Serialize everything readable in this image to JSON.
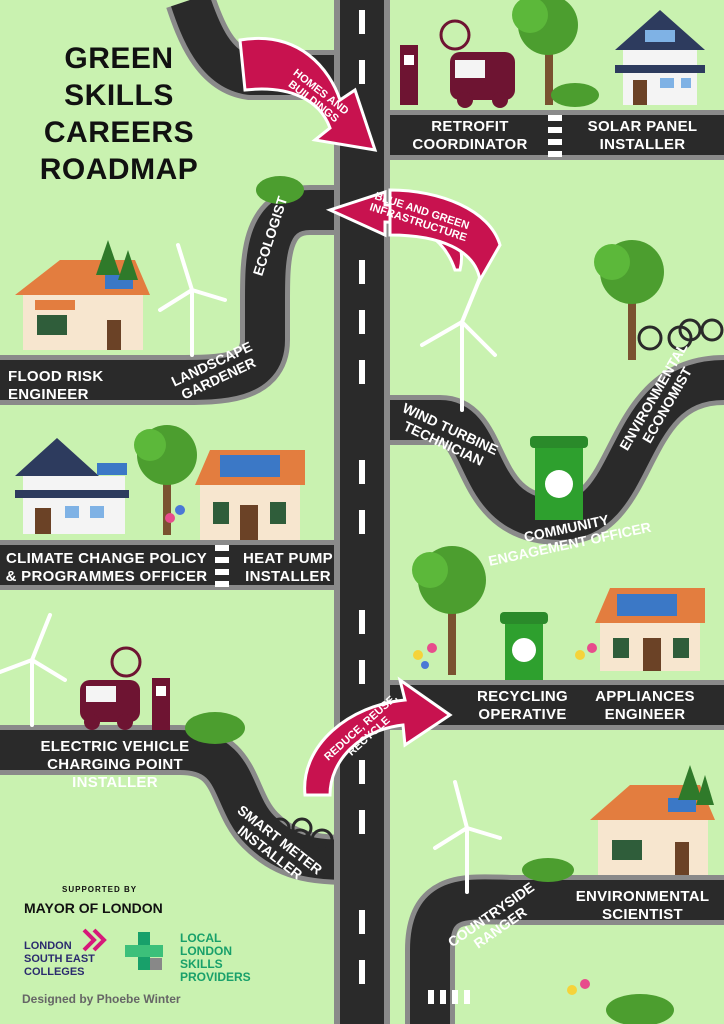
{
  "title": [
    "GREEN",
    "SKILLS",
    "CAREERS",
    "ROADMAP"
  ],
  "arrows": {
    "homes": "HOMES AND BUILDINGS",
    "blue_green": "BLUE AND GREEN INFRASTRUCTURE",
    "reduce": "REDUCE, REUSE, RECYCLE"
  },
  "careers": {
    "retrofit": "RETROFIT COORDINATOR",
    "solar": "SOLAR PANEL INSTALLER",
    "ecologist": "ECOLOGIST",
    "flood": "FLOOD RISK ENGINEER",
    "landscape": "LANDSCAPE GARDENER",
    "wind": "WIND TURBINE TECHNICIAN",
    "economist": "ENVIRONMENTAL ECONOMIST",
    "community": "COMMUNITY ENGAGEMENT OFFICER",
    "policy": "CLIMATE CHANGE POLICY & PROGRAMMES OFFICER",
    "heatpump": "HEAT PUMP INSTALLER",
    "recycling": "RECYCLING OPERATIVE",
    "appliances": "APPLIANCES ENGINEER",
    "ev": "ELECTRIC VEHICLE CHARGING POINT INSTALLER",
    "smartmeter": "SMART METER INSTALLER",
    "countryside": "COUNTRYSIDE RANGER",
    "scientist": "ENVIRONMENTAL SCIENTIST"
  },
  "footer": {
    "supported_by": "SUPPORTED BY",
    "mayor": "MAYOR OF LONDON",
    "lsec": "LONDON SOUTH EAST COLLEGES",
    "llsp": "LOCAL LONDON SKILLS PROVIDERS",
    "credit": "Designed by Phoebe Winter"
  },
  "colors": {
    "background": "#c9f2b0",
    "road": "#2a2a2a",
    "road_edge": "#8a8a8a",
    "arrow": "#c8124f"
  }
}
